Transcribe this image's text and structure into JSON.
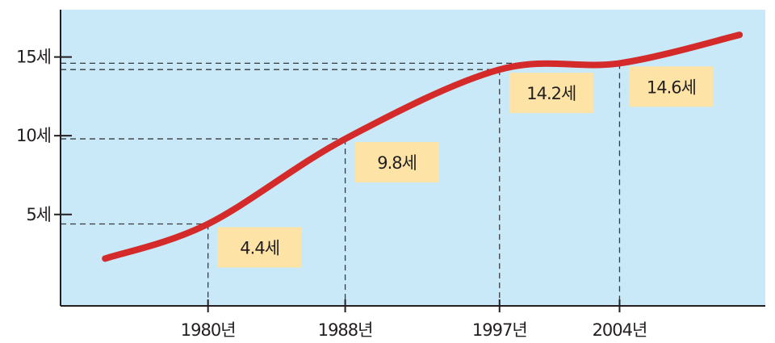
{
  "chart_data": {
    "type": "line",
    "title": "",
    "xlabel": "",
    "ylabel": "",
    "y_ticks": [
      {
        "value": 5,
        "label": "5세"
      },
      {
        "value": 10,
        "label": "10세"
      },
      {
        "value": 15,
        "label": "15세"
      }
    ],
    "x_ticks": [
      {
        "value": 1980,
        "label": "1980년"
      },
      {
        "value": 1988,
        "label": "1988년"
      },
      {
        "value": 1997,
        "label": "1997년"
      },
      {
        "value": 2004,
        "label": "2004년"
      }
    ],
    "xlim": [
      1971.4,
      2012.5
    ],
    "ylim": [
      -0.8,
      18.0
    ],
    "points": [
      {
        "x": 1980,
        "y": 4.4,
        "label": "4.4세"
      },
      {
        "x": 1988,
        "y": 9.8,
        "label": "9.8세"
      },
      {
        "x": 1997,
        "y": 14.2,
        "label": "14.2세"
      },
      {
        "x": 2004,
        "y": 14.6,
        "label": "14.6세"
      }
    ],
    "curve": [
      {
        "x": 1974.0,
        "y": 2.2
      },
      {
        "x": 1980.0,
        "y": 4.4
      },
      {
        "x": 1988.0,
        "y": 9.8
      },
      {
        "x": 1997.0,
        "y": 14.2
      },
      {
        "x": 2004.0,
        "y": 14.6
      },
      {
        "x": 2011.0,
        "y": 16.4
      }
    ],
    "grid": false,
    "colors": {
      "plot_background": "#c9e8f8",
      "line": "#d42a2a",
      "label_box": "#fde4a6",
      "axis": "#231f20",
      "guide": "#3a3a3a"
    }
  }
}
